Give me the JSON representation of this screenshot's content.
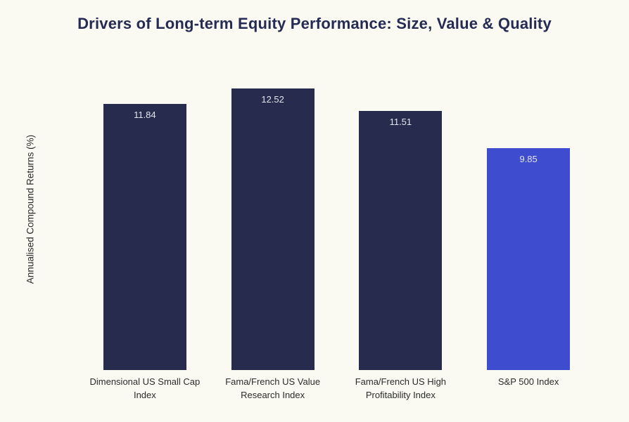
{
  "title": "Drivers of Long-term Equity Performance: Size, Value & Quality",
  "colors": {
    "background": "#fafaf2",
    "bar_navy": "#272c4e",
    "bar_accent_blue": "#3e4ccf",
    "title_text": "#252b52",
    "value_label_text": "#e3e5ec",
    "category_label_text": "#2b2b2b"
  },
  "chart_data": {
    "type": "bar",
    "title": "Drivers of Long-term Equity Performance: Size, Value & Quality",
    "categories": [
      "Dimensional US Small Cap Index",
      "Fama/French US Value Research Index",
      "Fama/French US High Profitability Index",
      "S&P 500 Index"
    ],
    "values": [
      11.84,
      12.52,
      11.51,
      9.85
    ],
    "value_labels": [
      "11.84",
      "12.52",
      "11.51",
      "9.85"
    ],
    "bar_colors": [
      "#272c4e",
      "#272c4e",
      "#272c4e",
      "#3e4ccf"
    ],
    "xlabel": "",
    "ylabel": "Annualised Compound Returns (%)",
    "ylim": [
      0,
      13.17
    ],
    "grid": false,
    "legend": false,
    "axis_lines": false
  }
}
